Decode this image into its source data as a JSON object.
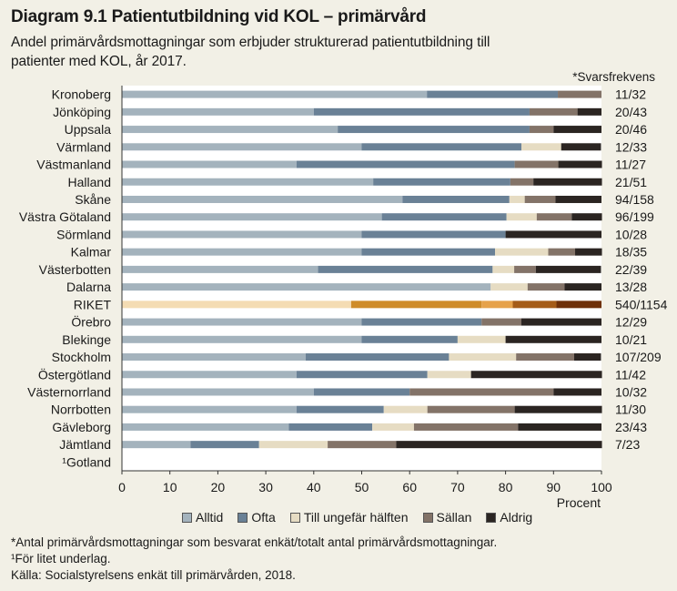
{
  "title": "Diagram 9.1 Patientutbildning vid KOL – primärvård",
  "subtitle_line1": "Andel primärvårdsmottagningar som erbjuder strukturerad patientutbildning till",
  "subtitle_line2": "patienter med KOL, år 2017.",
  "response_header": "*Svarsfrekvens",
  "footnotes": [
    "*Antal primärvårdsmottagningar som besvarat enkät/totalt antal primärvårdsmottagningar.",
    "¹För litet underlag.",
    "Källa:  Socialstyrelsens enkät till primärvården, 2018."
  ],
  "chart_data": {
    "type": "bar",
    "orientation": "horizontal",
    "stacked": true,
    "xlabel": "Procent",
    "xlim": [
      0,
      100
    ],
    "xticks": [
      "0",
      "10",
      "20",
      "30",
      "40",
      "50",
      "60",
      "70",
      "80",
      "90",
      "100"
    ],
    "colors": [
      "#a4b3bd",
      "#6a8196",
      "#e6dcc3",
      "#837368",
      "#2b2522"
    ],
    "highlight_colors": [
      "#f4dcb3",
      "#cf8c2a",
      "#e6a24a",
      "#a55c18",
      "#6e3008"
    ],
    "highlight_category": "RIKET",
    "legend_position": "bottom",
    "categories": [
      "Kronoberg",
      "Jönköping",
      "Uppsala",
      "Värmland",
      "Västmanland",
      "Halland",
      "Skåne",
      "Västra Götaland",
      "Sörmland",
      "Kalmar",
      "Västerbotten",
      "Dalarna",
      "RIKET",
      "Örebro",
      "Blekinge",
      "Stockholm",
      "Östergötland",
      "Västernorrland",
      "Norrbotten",
      "Gävleborg",
      "Jämtland",
      "¹Gotland"
    ],
    "response_rates": [
      "11/32",
      "20/43",
      "20/46",
      "12/33",
      "11/27",
      "21/51",
      "94/158",
      "96/199",
      "10/28",
      "18/35",
      "22/39",
      "13/28",
      "540/1154",
      "12/29",
      "10/21",
      "107/209",
      "11/42",
      "10/32",
      "11/30",
      "23/43",
      "7/23",
      ""
    ],
    "series": [
      {
        "name": "Alltid",
        "values": [
          63.6,
          40.0,
          45.0,
          50.0,
          36.4,
          52.4,
          58.5,
          54.2,
          50.0,
          50.0,
          40.9,
          76.9,
          47.8,
          50.0,
          50.0,
          38.3,
          36.4,
          40.0,
          36.4,
          34.8,
          14.3,
          0
        ]
      },
      {
        "name": "Ofta",
        "values": [
          27.3,
          45.0,
          40.0,
          33.3,
          45.5,
          28.6,
          22.3,
          26.0,
          30.0,
          27.8,
          36.4,
          0.0,
          27.2,
          25.0,
          20.0,
          29.9,
          27.3,
          20.0,
          18.2,
          17.4,
          14.3,
          0
        ]
      },
      {
        "name": "Till ungefär hälften",
        "values": [
          0.0,
          0.0,
          0.0,
          8.3,
          0.0,
          0.0,
          3.2,
          6.3,
          0.0,
          11.1,
          4.5,
          7.7,
          6.5,
          0.0,
          10.0,
          14.0,
          9.1,
          0.0,
          9.1,
          8.7,
          14.3,
          0
        ]
      },
      {
        "name": "Sällan",
        "values": [
          9.1,
          10.0,
          5.0,
          0.0,
          9.1,
          4.8,
          6.4,
          7.3,
          0.0,
          5.6,
          4.5,
          7.7,
          9.1,
          8.3,
          0.0,
          12.1,
          0.0,
          30.0,
          18.2,
          21.7,
          14.3,
          0
        ]
      },
      {
        "name": "Aldrig",
        "values": [
          0.0,
          5.0,
          10.0,
          8.3,
          9.1,
          14.3,
          9.6,
          6.3,
          20.0,
          5.6,
          13.6,
          7.7,
          9.4,
          16.7,
          20.0,
          5.6,
          27.3,
          10.0,
          18.2,
          17.4,
          42.9,
          0
        ]
      }
    ]
  }
}
